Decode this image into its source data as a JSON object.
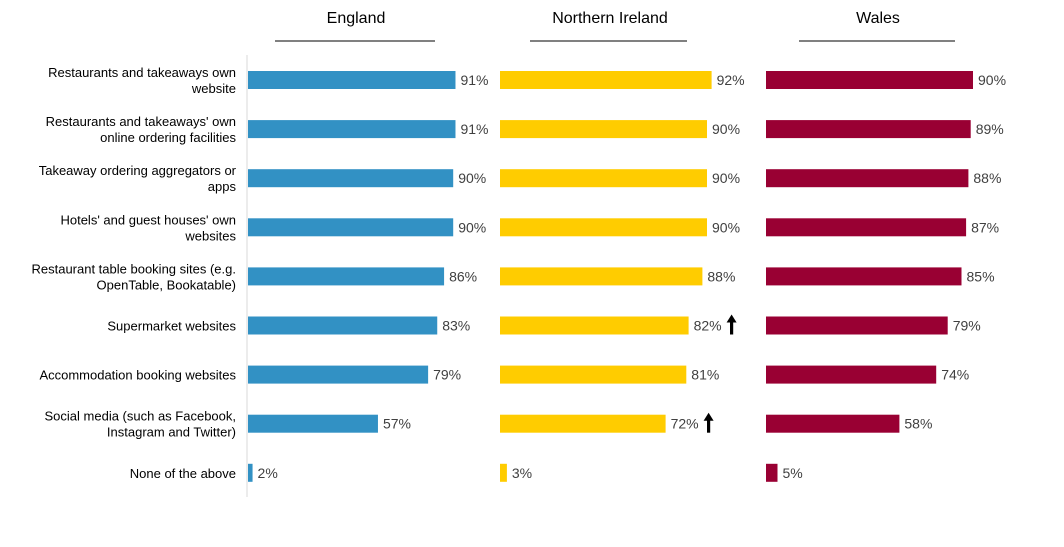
{
  "chart_data": {
    "type": "bar",
    "orientation": "horizontal",
    "categories": [
      [
        "Restaurants and takeaways own",
        "website"
      ],
      [
        "Restaurants and takeaways' own",
        "online ordering facilities"
      ],
      [
        "Takeaway ordering aggregators or",
        "apps"
      ],
      [
        "Hotels' and guest houses' own",
        "websites"
      ],
      [
        "Restaurant table booking sites (e.g.",
        "OpenTable, Bookatable)"
      ],
      [
        "Supermarket websites"
      ],
      [
        "Accommodation booking websites"
      ],
      [
        "Social media (such as Facebook,",
        "Instagram and Twitter)"
      ],
      [
        "None of the above"
      ]
    ],
    "series": [
      {
        "name": "England",
        "color": "#3291C4",
        "values": [
          91,
          91,
          90,
          90,
          86,
          83,
          79,
          57,
          2
        ],
        "labels": [
          "91%",
          "91%",
          "90%",
          "90%",
          "86%",
          "83%",
          "79%",
          "57%",
          "2%"
        ],
        "up_arrows": [
          false,
          false,
          false,
          false,
          false,
          false,
          false,
          false,
          false
        ]
      },
      {
        "name": "Northern Ireland",
        "color": "#FFCC00",
        "values": [
          92,
          90,
          90,
          90,
          88,
          82,
          81,
          72,
          3
        ],
        "labels": [
          "92%",
          "90%",
          "90%",
          "90%",
          "88%",
          "82%",
          "81%",
          "72%",
          "3%"
        ],
        "up_arrows": [
          false,
          false,
          false,
          false,
          false,
          true,
          false,
          true,
          false
        ]
      },
      {
        "name": "Wales",
        "color": "#990033",
        "values": [
          90,
          89,
          88,
          87,
          85,
          79,
          74,
          58,
          5
        ],
        "labels": [
          "90%",
          "89%",
          "88%",
          "87%",
          "85%",
          "79%",
          "74%",
          "58%",
          "5%"
        ],
        "up_arrows": [
          false,
          false,
          false,
          false,
          false,
          false,
          false,
          false,
          false
        ]
      }
    ],
    "xlim": [
      0,
      100
    ],
    "grid": false,
    "legend": "none"
  }
}
